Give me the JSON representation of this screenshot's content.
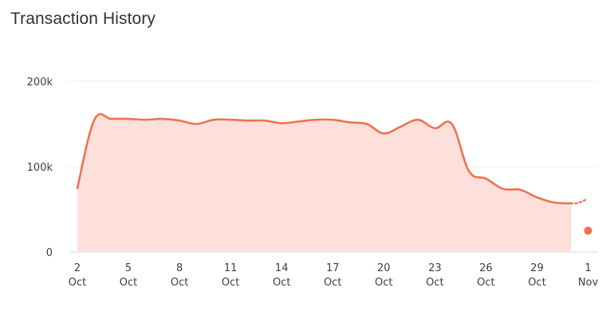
{
  "header": {
    "title": "Transaction History"
  },
  "chart_data": {
    "type": "area",
    "title": "Transaction History",
    "xlabel": "",
    "ylabel": "",
    "ylim": [
      0,
      200000
    ],
    "grid": true,
    "yticks": [
      {
        "value": 0,
        "label": "0"
      },
      {
        "value": 100000,
        "label": "100k"
      },
      {
        "value": 200000,
        "label": "200k"
      }
    ],
    "xticks": [
      {
        "day": 2,
        "line1": "2",
        "line2": "Oct"
      },
      {
        "day": 5,
        "line1": "5",
        "line2": "Oct"
      },
      {
        "day": 8,
        "line1": "8",
        "line2": "Oct"
      },
      {
        "day": 11,
        "line1": "11",
        "line2": "Oct"
      },
      {
        "day": 14,
        "line1": "14",
        "line2": "Oct"
      },
      {
        "day": 17,
        "line1": "17",
        "line2": "Oct"
      },
      {
        "day": 20,
        "line1": "20",
        "line2": "Oct"
      },
      {
        "day": 23,
        "line1": "23",
        "line2": "Oct"
      },
      {
        "day": 26,
        "line1": "26",
        "line2": "Oct"
      },
      {
        "day": 29,
        "line1": "29",
        "line2": "Oct"
      },
      {
        "day": 32,
        "line1": "1",
        "line2": "Nov"
      }
    ],
    "series": [
      {
        "color": "#f07150",
        "fill": "#fde0dc",
        "points": [
          {
            "x": 2,
            "y": 75000
          },
          {
            "x": 3,
            "y": 155000
          },
          {
            "x": 4,
            "y": 156000
          },
          {
            "x": 5,
            "y": 156000
          },
          {
            "x": 6,
            "y": 155000
          },
          {
            "x": 7,
            "y": 156000
          },
          {
            "x": 8,
            "y": 154000
          },
          {
            "x": 9,
            "y": 150000
          },
          {
            "x": 10,
            "y": 155000
          },
          {
            "x": 11,
            "y": 155000
          },
          {
            "x": 12,
            "y": 154000
          },
          {
            "x": 13,
            "y": 154000
          },
          {
            "x": 14,
            "y": 151000
          },
          {
            "x": 15,
            "y": 153000
          },
          {
            "x": 16,
            "y": 155000
          },
          {
            "x": 17,
            "y": 155000
          },
          {
            "x": 18,
            "y": 152000
          },
          {
            "x": 19,
            "y": 150000
          },
          {
            "x": 20,
            "y": 139000
          },
          {
            "x": 21,
            "y": 147000
          },
          {
            "x": 22,
            "y": 155000
          },
          {
            "x": 23,
            "y": 145000
          },
          {
            "x": 24,
            "y": 150000
          },
          {
            "x": 25,
            "y": 95000
          },
          {
            "x": 26,
            "y": 86000
          },
          {
            "x": 27,
            "y": 74000
          },
          {
            "x": 28,
            "y": 73000
          },
          {
            "x": 29,
            "y": 64000
          },
          {
            "x": 30,
            "y": 58000
          },
          {
            "x": 31,
            "y": 57000
          }
        ],
        "projected": [
          {
            "x": 31,
            "y": 57000
          },
          {
            "x": 31.9,
            "y": 62000
          }
        ],
        "marker": {
          "x": 32,
          "y": 25000
        }
      }
    ]
  }
}
